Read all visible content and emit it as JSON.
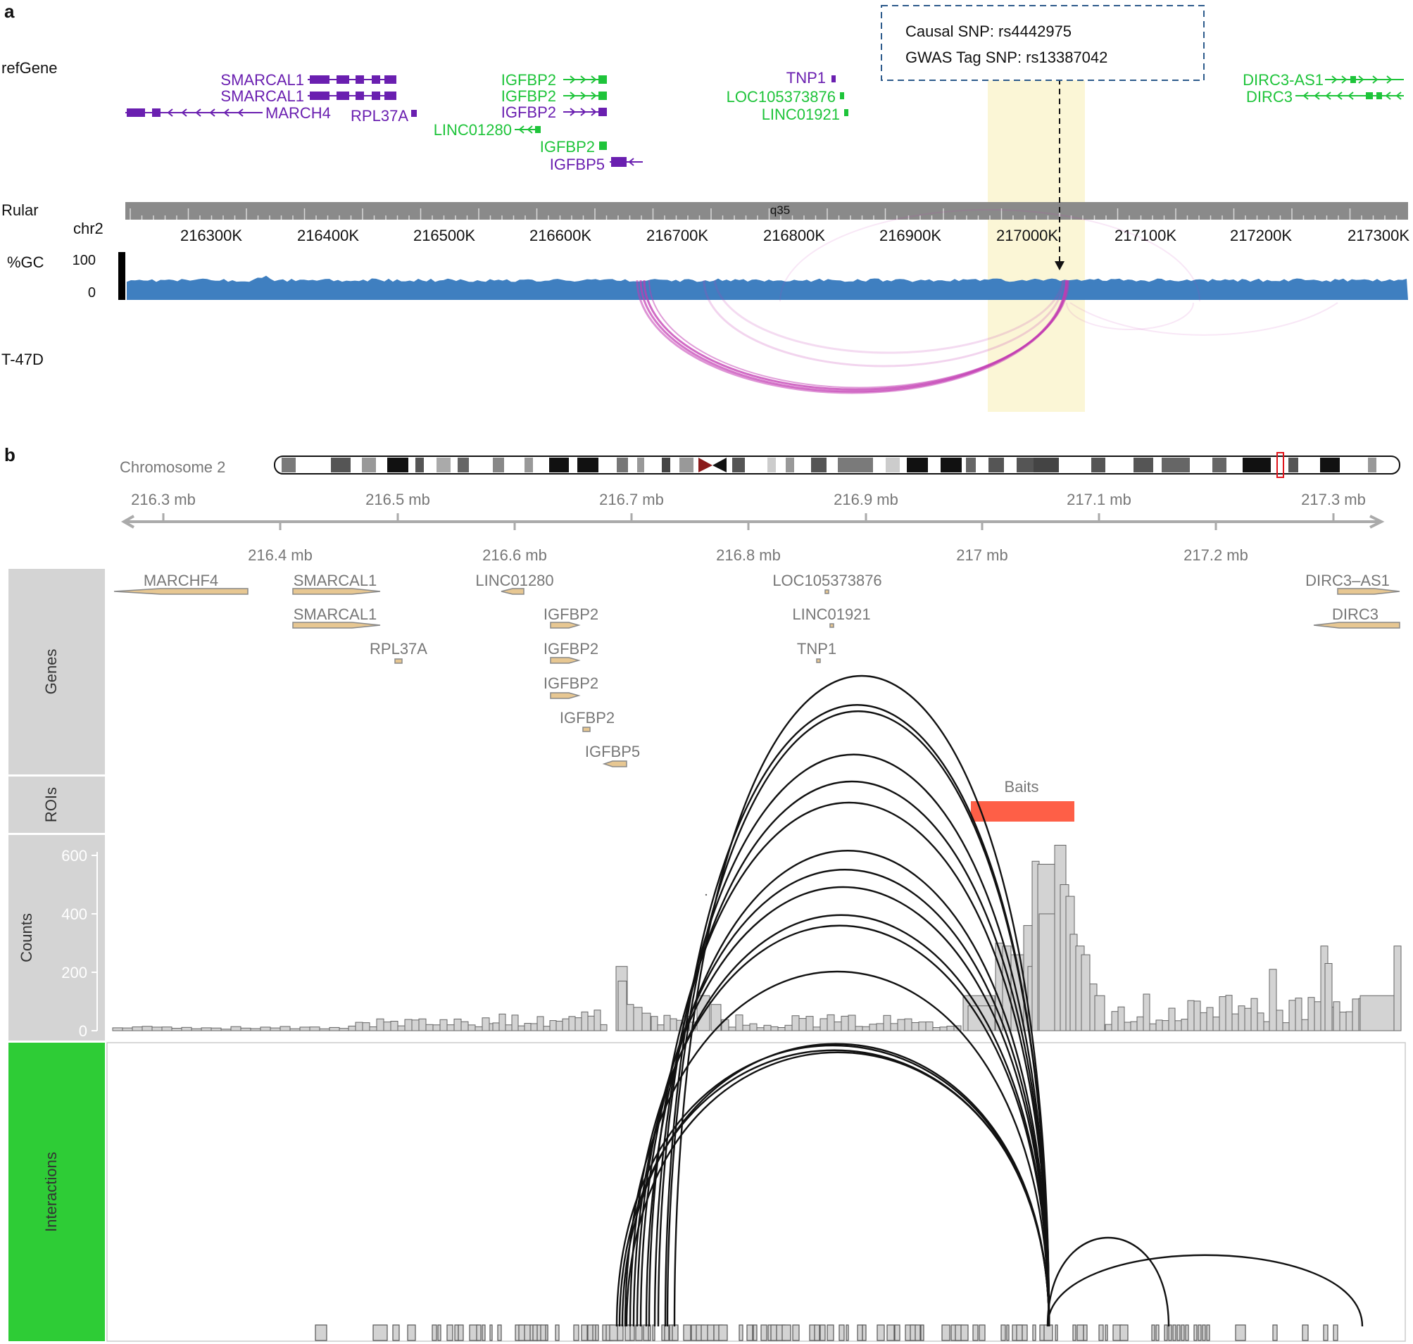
{
  "panel_a": {
    "label": "a",
    "track_labels": {
      "refgene": "refGene",
      "ruler": "Rular",
      "chrom": "chr2",
      "gc": "%GC",
      "gc_max": "100",
      "gc_min": "0",
      "celltype": "T-47D"
    },
    "callout": {
      "line1": "Causal SNP: rs4442975",
      "line2": "GWAS Tag SNP: rs13387042"
    },
    "band": "q35",
    "ruler_ticks": [
      "216300K",
      "216400K",
      "216500K",
      "216600K",
      "216700K",
      "216800K",
      "216900K",
      "217000K",
      "217100K",
      "217200K",
      "217300K"
    ],
    "genes": [
      {
        "label": "SMARCAL1",
        "strand": "+",
        "color": "#6a1fb0"
      },
      {
        "label": "SMARCAL1",
        "strand": "+",
        "color": "#6a1fb0"
      },
      {
        "label": "MARCH4",
        "strand": "-",
        "color": "#6a1fb0"
      },
      {
        "label": "RPL37A",
        "strand": "+",
        "color": "#6a1fb0"
      },
      {
        "label": "IGFBP2",
        "strand": "+",
        "color": "#1ec43a"
      },
      {
        "label": "IGFBP2",
        "strand": "+",
        "color": "#1ec43a"
      },
      {
        "label": "IGFBP2",
        "strand": "+",
        "color": "#6a1fb0"
      },
      {
        "label": "LINC01280",
        "strand": "-",
        "color": "#1ec43a"
      },
      {
        "label": "IGFBP2",
        "strand": "+",
        "color": "#1ec43a"
      },
      {
        "label": "IGFBP5",
        "strand": "-",
        "color": "#6a1fb0"
      },
      {
        "label": "TNP1",
        "strand": "+",
        "color": "#6a1fb0"
      },
      {
        "label": "LOC105373876",
        "strand": "+",
        "color": "#1ec43a"
      },
      {
        "label": "LINC01921",
        "strand": "+",
        "color": "#1ec43a"
      },
      {
        "label": "DIRC3-AS1",
        "strand": "+",
        "color": "#1ec43a"
      },
      {
        "label": "DIRC3",
        "strand": "-",
        "color": "#1ec43a"
      }
    ],
    "colors": {
      "gc_fill": "#3f7fc0",
      "arc": "#c23ab2",
      "highlight": "#fbf6d6",
      "callout_border": "#2d5b8c",
      "purple": "#6a1fb0",
      "green": "#1ec43a"
    }
  },
  "panel_b": {
    "label": "b",
    "chromosome_label": "Chromosome 2",
    "axis_top": [
      "216.3 mb",
      "216.5 mb",
      "216.7 mb",
      "216.9 mb",
      "217.1 mb",
      "217.3 mb"
    ],
    "axis_bottom": [
      "216.4 mb",
      "216.6 mb",
      "216.8 mb",
      "217 mb",
      "217.2 mb"
    ],
    "track_names": {
      "genes": "Genes",
      "rois": "ROIs",
      "counts": "Counts",
      "interactions": "Interactions"
    },
    "genes": [
      {
        "label": "MARCHF4",
        "strand": "-"
      },
      {
        "label": "SMARCAL1",
        "strand": "+"
      },
      {
        "label": "SMARCAL1",
        "strand": "+"
      },
      {
        "label": "RPL37A",
        "strand": "+"
      },
      {
        "label": "LINC01280",
        "strand": "-"
      },
      {
        "label": "IGFBP2",
        "strand": "+"
      },
      {
        "label": "IGFBP2",
        "strand": "+"
      },
      {
        "label": "IGFBP2",
        "strand": "+"
      },
      {
        "label": "IGFBP2",
        "strand": "+"
      },
      {
        "label": "IGFBP5",
        "strand": "-"
      },
      {
        "label": "LOC105373876",
        "strand": "+"
      },
      {
        "label": "LINC01921",
        "strand": "+"
      },
      {
        "label": "TNP1",
        "strand": "+"
      },
      {
        "label": "DIRC3–AS1",
        "strand": "+"
      },
      {
        "label": "DIRC3",
        "strand": "-"
      }
    ],
    "roi_label": "Baits",
    "count_ticks": [
      "0",
      "200",
      "400",
      "600"
    ],
    "colors": {
      "track_panel": "#d4d4d4",
      "interactions_panel": "#2ecc36",
      "bait": "#fe5f47",
      "bar_fill": "#d3d3d3",
      "bar_stroke": "#666666",
      "gene_fill": "#e7c792",
      "gene_stroke": "#888888",
      "ideo_highlight": "#e0141b",
      "centromere": "#8b1a1a"
    }
  }
}
